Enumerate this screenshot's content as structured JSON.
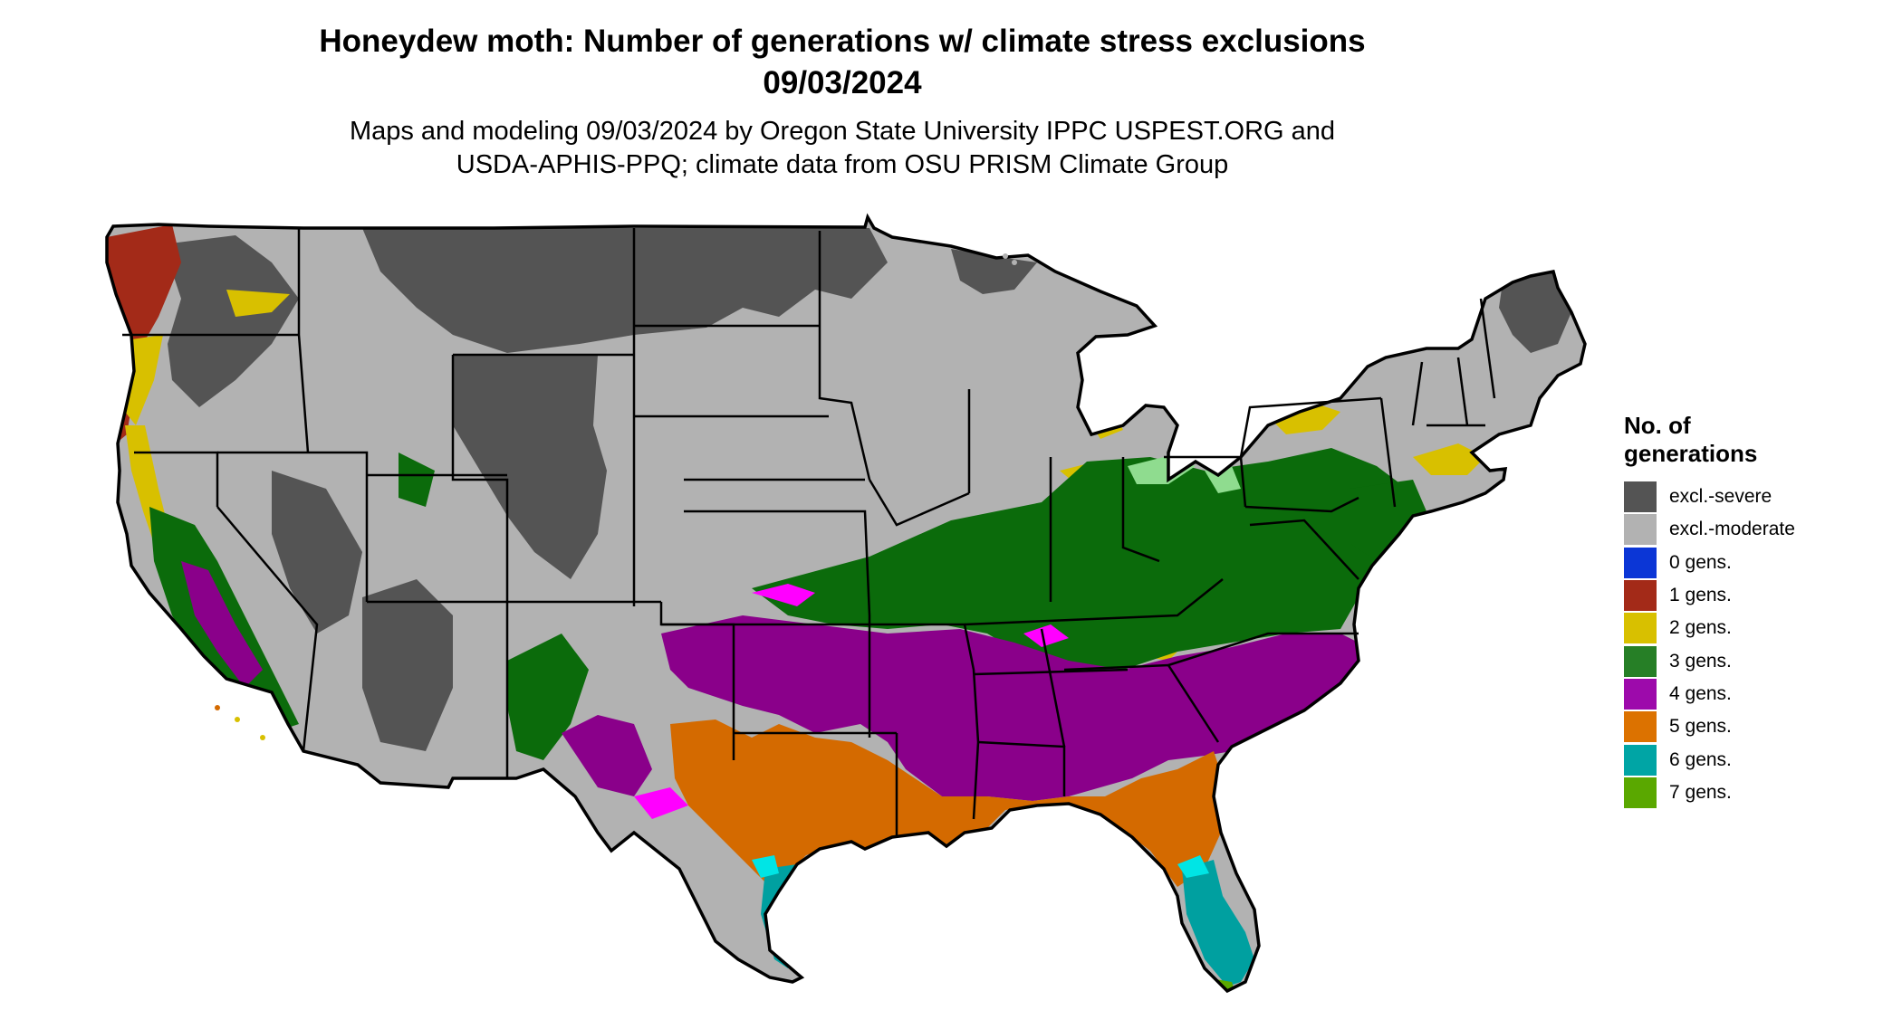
{
  "title": {
    "line1": "Honeydew moth: Number of generations w/ climate stress exclusions",
    "line2": "09/03/2024"
  },
  "subtitle": {
    "line1": "Maps and modeling 09/03/2024 by Oregon State University IPPC USPEST.ORG and",
    "line2": "USDA-APHIS-PPQ; climate data from OSU PRISM Climate Group"
  },
  "legend": {
    "title_line1": "No. of",
    "title_line2": "generations",
    "items": [
      {
        "label": "excl.-severe",
        "color": "#545454"
      },
      {
        "label": "excl.-moderate",
        "color": "#b2b2b2"
      },
      {
        "label": "0 gens.",
        "color": "#0b36d6"
      },
      {
        "label": "1 gens.",
        "color": "#a32a18"
      },
      {
        "label": "2 gens.",
        "color": "#d8c000"
      },
      {
        "label": "3 gens.",
        "color": "#267f26"
      },
      {
        "label": "4 gens.",
        "color": "#9d0aab"
      },
      {
        "label": "5 gens.",
        "color": "#dc7200"
      },
      {
        "label": "6 gens.",
        "color": "#00a5a5"
      },
      {
        "label": "7 gens.",
        "color": "#5aa800"
      }
    ]
  },
  "map_colors": {
    "severe": "#545454",
    "moderate": "#b2b2b2",
    "gen1": "#a32a18",
    "gen2": "#d8c000",
    "gen3": "#0b6b0b",
    "gen3_light": "#8fdc8f",
    "gen4": "#8a008a",
    "gen4_bright": "#ff00ff",
    "gen5": "#d46a00",
    "gen6": "#00a0a0",
    "gen6_light": "#00e5e5",
    "gen7": "#5aa800",
    "border": "#000000"
  }
}
